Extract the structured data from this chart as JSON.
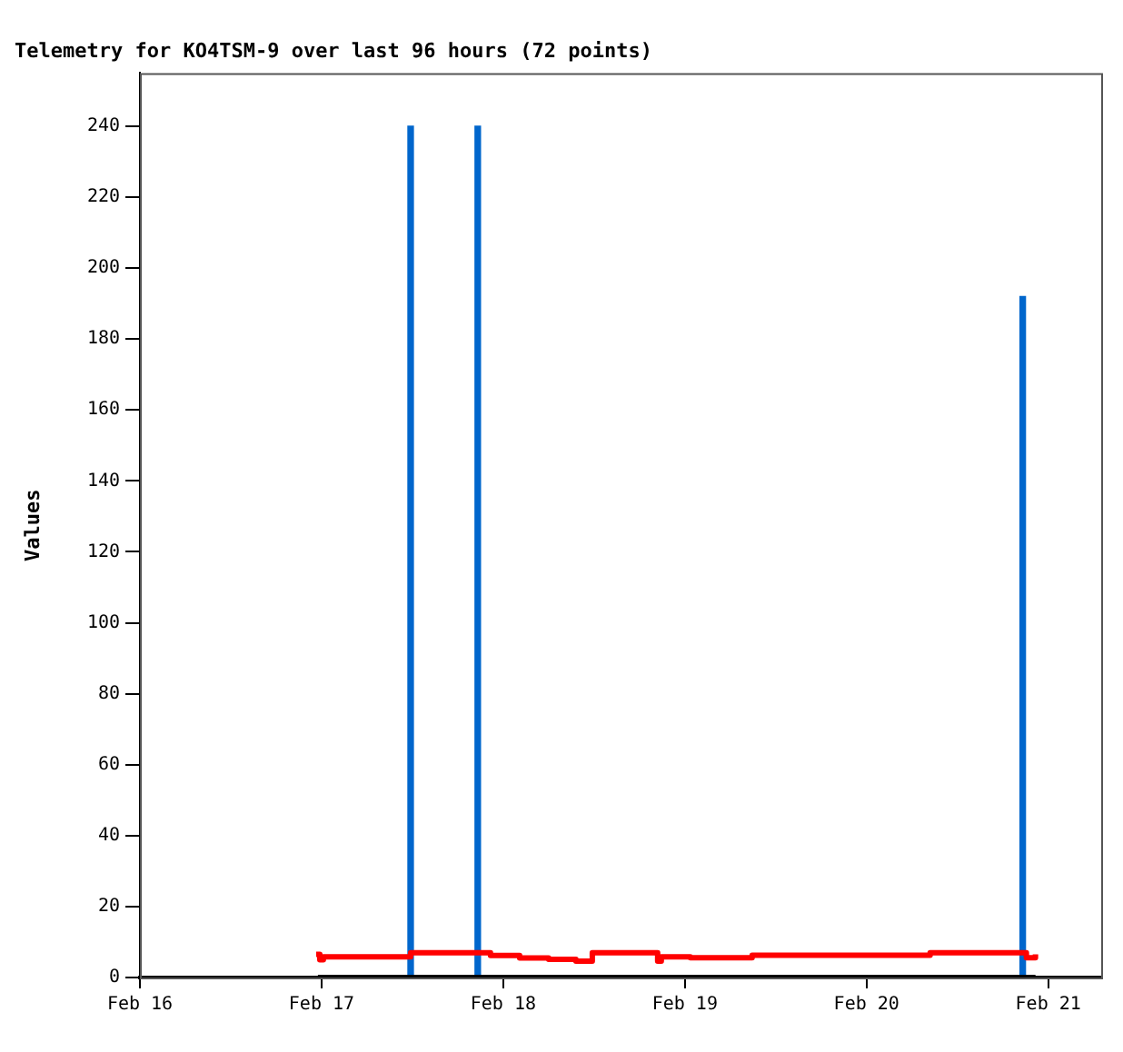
{
  "chart_data": {
    "type": "line",
    "title": "Telemetry for KO4TSM-9 over last 96 hours (72 points)",
    "ylabel": "Values",
    "xlim": [
      "--02-16",
      "--02-21T07:00"
    ],
    "xticks": [
      {
        "value": "--02-16",
        "label": "Feb 16"
      },
      {
        "value": "--02-17",
        "label": "Feb 17"
      },
      {
        "value": "--02-18",
        "label": "Feb 18"
      },
      {
        "value": "--02-19",
        "label": "Feb 19"
      },
      {
        "value": "--02-20",
        "label": "Feb 20"
      },
      {
        "value": "--02-21",
        "label": "Feb 21"
      }
    ],
    "ylim": [
      0,
      255
    ],
    "yticks": [
      0,
      20,
      40,
      60,
      80,
      100,
      120,
      140,
      160,
      180,
      200,
      220,
      240
    ],
    "grid": false,
    "legend": false,
    "series": [
      {
        "color": "#000000",
        "x": [
          "--02-16T23:31",
          "--02-20T22:19"
        ],
        "values": [
          0,
          0
        ]
      },
      {
        "type": "step",
        "color": "#ff0000",
        "x": [
          "--02-16T23:17",
          "--02-16T23:46",
          "--02-17T00:14",
          "--02-17T11:46",
          "--02-17T22:19",
          "--02-18T02:10",
          "--02-18T06:00",
          "--02-18T09:36",
          "--02-18T11:46",
          "--02-18T20:24",
          "--02-18T20:53",
          "--02-19T00:43",
          "--02-19T08:53",
          "--02-20T08:24",
          "--02-20T21:07",
          "--02-20T22:19"
        ],
        "values": [
          6.5,
          5.0,
          5.8,
          7.0,
          6.2,
          5.5,
          5.1,
          4.6,
          7.0,
          4.6,
          5.8,
          5.6,
          6.3,
          7.0,
          5.6,
          6.5
        ]
      },
      {
        "type": "bar",
        "color": "#0066cc",
        "x": [
          "--02-17T11:46",
          "--02-17T20:38",
          "--02-20T20:38"
        ],
        "values": [
          240,
          240,
          192
        ]
      }
    ]
  }
}
